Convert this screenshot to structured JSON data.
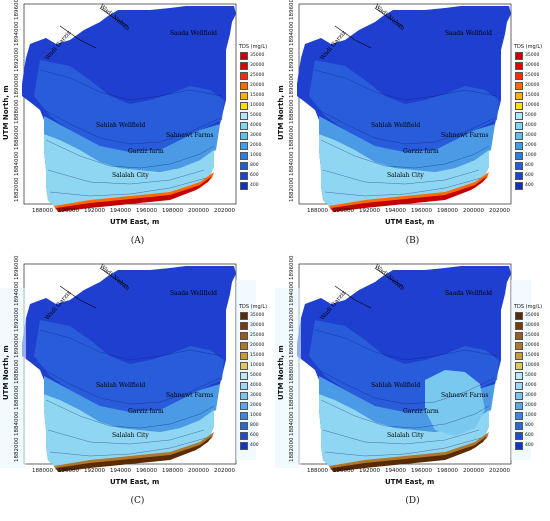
{
  "figure": {
    "panels": [
      {
        "caption": "(A)",
        "xlabel": "UTM East, m",
        "ylabel": "UTM North, m",
        "xticks": [
          "188000",
          "190000",
          "192000",
          "194000",
          "196000",
          "198000",
          "200000",
          "202000"
        ],
        "yticks": [
          "1882000",
          "1884000",
          "1886000",
          "1888000",
          "1890000",
          "1892000",
          "1894000",
          "1896000"
        ],
        "legend_title": "TDS (mg/L)",
        "palette": "bright",
        "labels": {
          "wadi_naban": "Wadi Naban",
          "wadi_garziz": "Wadi Garziz",
          "saada": "Saada Wellfield",
          "sahlah": "Sahlah Wellfield",
          "garziz_farm": "Garziz farm",
          "sahnawt": "Sahnawt Farms",
          "salalah_city": "Salalah City"
        }
      },
      {
        "caption": "(B)",
        "xlabel": "UTM East, m",
        "ylabel": "UTM North, m",
        "xticks": [
          "188000",
          "190000",
          "192000",
          "194000",
          "196000",
          "198000",
          "200000",
          "202000"
        ],
        "yticks": [
          "1882000",
          "1884000",
          "1886000",
          "1888000",
          "1890000",
          "1892000",
          "1894000",
          "1896000"
        ],
        "legend_title": "TDS (mg/L)",
        "palette": "bright",
        "labels": {
          "wadi_naban": "Wadi Naban",
          "wadi_garziz": "Wadi Garziz",
          "saada": "Saada Wellfield",
          "sahlah": "Sahlah Wellfield",
          "garziz_farm": "Garziz farm",
          "sahnawt": "Sahnawt Farms",
          "salalah_city": "Salalah City"
        }
      },
      {
        "caption": "(C)",
        "xlabel": "UTM East, m",
        "ylabel": "UTM North, m",
        "xticks": [
          "188000",
          "190000",
          "192000",
          "194000",
          "196000",
          "198000",
          "200000",
          "202000"
        ],
        "yticks": [
          "1882000",
          "1884000",
          "1886000",
          "1888000",
          "1890000",
          "1892000",
          "1894000",
          "1896000"
        ],
        "legend_title": "TDS (mg/L)",
        "palette": "earth",
        "labels": {
          "wadi_naban": "Wadi Naban",
          "wadi_garziz": "Wadi Garziz",
          "saada": "Saada Wellfield",
          "sahlah": "Sahlah Wellfield",
          "garziz_farm": "Garziz farm",
          "sahnawt": "Sahnawt Farms",
          "salalah_city": "Salalah City"
        }
      },
      {
        "caption": "(D)",
        "xlabel": "UTM East, m",
        "ylabel": "UTM North, m",
        "xticks": [
          "188000",
          "190000",
          "192000",
          "194000",
          "196000",
          "198000",
          "200000",
          "202000"
        ],
        "yticks": [
          "1882000",
          "1884000",
          "1886000",
          "1888000",
          "1890000",
          "1892000",
          "1894000",
          "1896000"
        ],
        "legend_title": "TDS (mg/L)",
        "palette": "earth",
        "labels": {
          "wadi_naban": "Wadi Naban",
          "wadi_garziz": "Wadi Garziz",
          "saada": "Saada Wellfield",
          "sahlah": "Sahlah Wellfield",
          "garziz_farm": "Garziz farm",
          "sahnawt": "Sahnawt Farms",
          "salalah_city": "Salalah City"
        }
      }
    ],
    "legend_values": [
      "35000",
      "30000",
      "25000",
      "20000",
      "15000",
      "10000",
      "5000",
      "4000",
      "3000",
      "2000",
      "1000",
      "800",
      "600",
      "400"
    ],
    "legend_colors_bright": [
      "#c40000",
      "#e00000",
      "#ff2a00",
      "#ff6a00",
      "#ffb000",
      "#ffe000",
      "#aee9ff",
      "#7fd6f5",
      "#5ec0ee",
      "#3ba1e8",
      "#2a7fe0",
      "#1f5fd8",
      "#1846cc",
      "#1030c0"
    ],
    "legend_colors_earth": [
      "#5a2a00",
      "#7a3a0a",
      "#9a5a20",
      "#b0762a",
      "#c99a3a",
      "#e0c860",
      "#bfe8ff",
      "#9ed8f8",
      "#7cc4f0",
      "#5aa8e8",
      "#3a86e0",
      "#2868d8",
      "#1c4ed0",
      "#1036c4"
    ]
  }
}
